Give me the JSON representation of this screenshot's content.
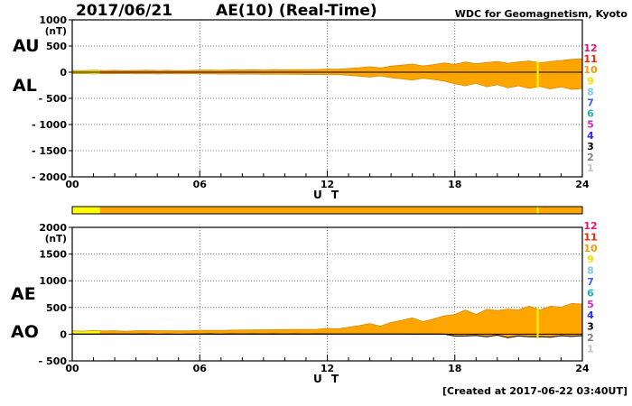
{
  "header": {
    "date": "2017/06/21",
    "title": "AE(10) (Real-Time)",
    "source": "WDC for Geomagnetism, Kyoto"
  },
  "footer": {
    "created": "[Created at 2017-06-22 03:40UT]"
  },
  "stations": {
    "numbers": [
      {
        "label": "12",
        "color": "#e8136f"
      },
      {
        "label": "11",
        "color": "#ff2200"
      },
      {
        "label": "10",
        "color": "#ff9900"
      },
      {
        "label": "9",
        "color": "#f0e000"
      },
      {
        "label": "8",
        "color": "#7ecbea"
      },
      {
        "label": "7",
        "color": "#3b64f0"
      },
      {
        "label": "6",
        "color": "#19b5b5"
      },
      {
        "label": "5",
        "color": "#d428d4"
      },
      {
        "label": "4",
        "color": "#2a2af0"
      },
      {
        "label": "3",
        "color": "#000000"
      },
      {
        "label": "2",
        "color": "#808080"
      },
      {
        "label": "1",
        "color": "#c0c0c0"
      }
    ]
  },
  "availability_bar": {
    "segments": [
      {
        "start": 0,
        "end": 1.3,
        "color": "#ffff00"
      },
      {
        "start": 1.3,
        "end": 24,
        "color": "#ffa500"
      }
    ],
    "marker": {
      "x": 21.9,
      "color": "#ffff00"
    }
  },
  "chart_data": [
    {
      "type": "area",
      "panel": "AU-AL",
      "left_labels": [
        "AU",
        "AL"
      ],
      "unit_label": "(nT)",
      "xlabel": "U T",
      "xlim": [
        0,
        24
      ],
      "ylim": [
        -2000,
        1000
      ],
      "grid": true,
      "fill_color": "#ffa500",
      "edge_color": "#d68a00",
      "yticks": [
        {
          "value": 1000,
          "label": "1000"
        },
        {
          "value": 500,
          "label": "500"
        },
        {
          "value": 0,
          "label": "0"
        },
        {
          "value": -500,
          "label": "- 500"
        },
        {
          "value": -1000,
          "label": "- 1000"
        },
        {
          "value": -1500,
          "label": "- 1500"
        },
        {
          "value": -2000,
          "label": "- 2000"
        }
      ],
      "xticks": [
        {
          "value": 0,
          "label": "00"
        },
        {
          "value": 6,
          "label": "06"
        },
        {
          "value": 12,
          "label": "12"
        },
        {
          "value": 18,
          "label": "18"
        },
        {
          "value": 24,
          "label": "24"
        }
      ],
      "x": [
        0,
        0.5,
        1,
        1.5,
        2,
        2.5,
        3,
        3.5,
        4,
        4.5,
        5,
        5.5,
        6,
        6.5,
        7,
        7.5,
        8,
        8.5,
        9,
        9.5,
        10,
        10.5,
        11,
        11.5,
        12,
        12.5,
        13,
        13.5,
        14,
        14.5,
        15,
        15.5,
        16,
        16.5,
        17,
        17.5,
        18,
        18.5,
        19,
        19.5,
        20,
        20.5,
        21,
        21.5,
        22,
        22.5,
        23,
        23.5,
        24
      ],
      "series": [
        {
          "name": "AU",
          "values": [
            35,
            30,
            38,
            32,
            36,
            30,
            34,
            38,
            32,
            36,
            30,
            34,
            38,
            42,
            36,
            44,
            40,
            46,
            42,
            48,
            44,
            50,
            46,
            52,
            60,
            55,
            70,
            85,
            105,
            80,
            115,
            135,
            155,
            120,
            145,
            175,
            150,
            195,
            160,
            185,
            205,
            170,
            195,
            215,
            180,
            205,
            225,
            245,
            255
          ]
        },
        {
          "name": "AL",
          "values": [
            -30,
            -25,
            -32,
            -28,
            -30,
            -26,
            -32,
            -28,
            -34,
            -28,
            -32,
            -28,
            -34,
            -30,
            -36,
            -32,
            -38,
            -34,
            -40,
            -36,
            -42,
            -38,
            -44,
            -40,
            -50,
            -45,
            -60,
            -75,
            -95,
            -70,
            -105,
            -125,
            -150,
            -115,
            -140,
            -170,
            -220,
            -260,
            -210,
            -280,
            -240,
            -300,
            -260,
            -310,
            -270,
            -320,
            -280,
            -330,
            -310
          ]
        }
      ],
      "overlay_black_series_index": null
    },
    {
      "type": "area",
      "panel": "AE-AO",
      "left_labels": [
        "AE",
        "AO"
      ],
      "unit_label": "(nT)",
      "xlabel": "U T",
      "xlim": [
        0,
        24
      ],
      "ylim": [
        -500,
        2000
      ],
      "grid": true,
      "fill_color": "#ffa500",
      "edge_color": "#d68a00",
      "yticks": [
        {
          "value": 2000,
          "label": "2000"
        },
        {
          "value": 1500,
          "label": "1500"
        },
        {
          "value": 1000,
          "label": "1000"
        },
        {
          "value": 500,
          "label": "500"
        },
        {
          "value": 0,
          "label": "0"
        },
        {
          "value": -500,
          "label": "- 500"
        }
      ],
      "xticks": [
        {
          "value": 0,
          "label": "00"
        },
        {
          "value": 6,
          "label": "06"
        },
        {
          "value": 12,
          "label": "12"
        },
        {
          "value": 18,
          "label": "18"
        },
        {
          "value": 24,
          "label": "24"
        }
      ],
      "x": [
        0,
        0.5,
        1,
        1.5,
        2,
        2.5,
        3,
        3.5,
        4,
        4.5,
        5,
        5.5,
        6,
        6.5,
        7,
        7.5,
        8,
        8.5,
        9,
        9.5,
        10,
        10.5,
        11,
        11.5,
        12,
        12.5,
        13,
        13.5,
        14,
        14.5,
        15,
        15.5,
        16,
        16.5,
        17,
        17.5,
        18,
        18.5,
        19,
        19.5,
        20,
        20.5,
        21,
        21.5,
        22,
        22.5,
        23,
        23.5,
        24
      ],
      "series": [
        {
          "name": "AE",
          "values": [
            65,
            55,
            70,
            60,
            66,
            56,
            66,
            66,
            66,
            64,
            62,
            62,
            72,
            72,
            72,
            76,
            78,
            80,
            82,
            84,
            86,
            88,
            90,
            92,
            110,
            100,
            130,
            160,
            200,
            150,
            220,
            260,
            305,
            235,
            285,
            345,
            370,
            455,
            370,
            465,
            445,
            470,
            455,
            525,
            450,
            525,
            505,
            575,
            565
          ]
        },
        {
          "name": "AO",
          "values": [
            3,
            3,
            3,
            2,
            3,
            2,
            1,
            5,
            -1,
            4,
            -1,
            3,
            2,
            6,
            0,
            6,
            1,
            6,
            1,
            6,
            1,
            6,
            1,
            6,
            5,
            5,
            5,
            5,
            5,
            5,
            5,
            5,
            3,
            3,
            3,
            3,
            -35,
            -33,
            -25,
            -48,
            -18,
            -65,
            -33,
            -48,
            -45,
            -58,
            -28,
            -43,
            -28
          ]
        }
      ],
      "overlay_black_series_index": 1
    }
  ]
}
